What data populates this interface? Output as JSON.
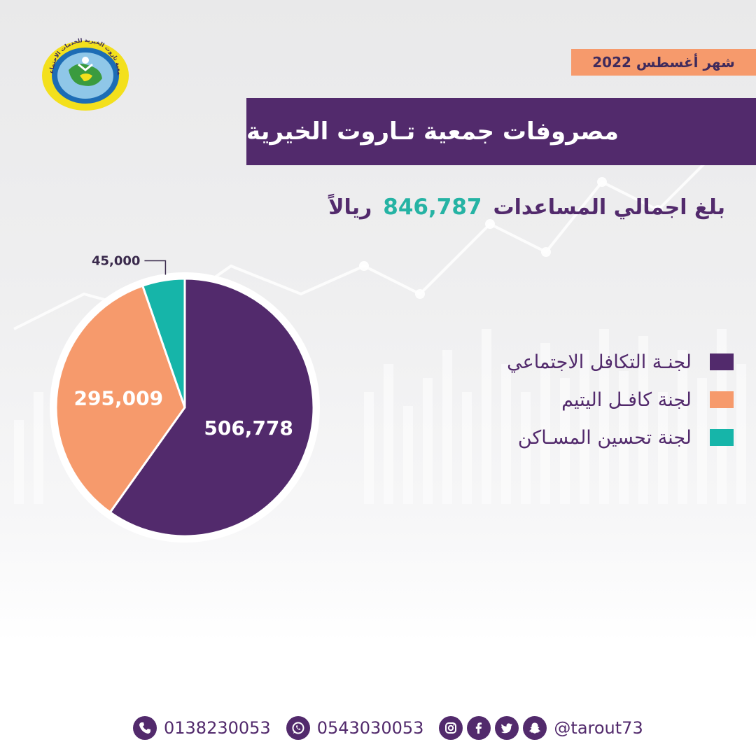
{
  "header": {
    "month": "شهر أغسطس 2022",
    "title": "مصروفات جمعية تـاروت الخيرية",
    "total_prefix": "بلغ اجمالي المساعدات",
    "total_amount": "846,787",
    "total_suffix": "ريالاً"
  },
  "logo": {
    "text": "جمعية تاروت الخيرية للخدمات الاجتماعية"
  },
  "chart_data": {
    "type": "pie",
    "title": "",
    "slices": [
      {
        "label": "لجنـة التكافل الاجتماعي",
        "value": 506778,
        "display": "506,778",
        "color": "#522a6c"
      },
      {
        "label": "لجنة كافـل اليتيم",
        "value": 295009,
        "display": "295,009",
        "color": "#f69a6c"
      },
      {
        "label": "لجنة تحسين المسـاكن",
        "value": 45000,
        "display": "45,000",
        "color": "#16b5a9"
      }
    ],
    "legend_position": "right"
  },
  "footer": {
    "phone": "0138230053",
    "whatsapp": "0543030053",
    "social_handle": "@tarout73",
    "icons": [
      "phone-icon",
      "whatsapp-icon",
      "instagram-icon",
      "facebook-icon",
      "twitter-icon",
      "snapchat-icon"
    ]
  }
}
